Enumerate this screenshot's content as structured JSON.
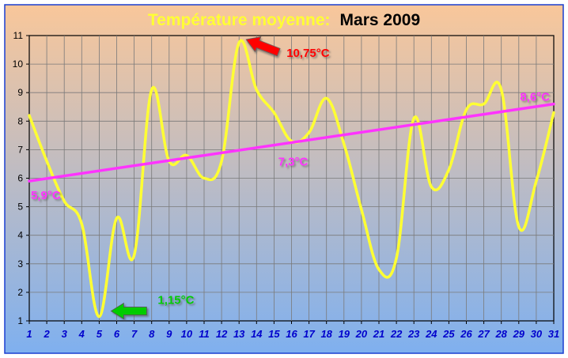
{
  "chart_data": {
    "type": "line",
    "title_part1": "Température moyenne:",
    "title_part2": "Mars 2009",
    "x": [
      1,
      2,
      3,
      4,
      5,
      6,
      7,
      8,
      9,
      10,
      11,
      12,
      13,
      14,
      15,
      16,
      17,
      18,
      19,
      20,
      21,
      22,
      23,
      24,
      25,
      26,
      27,
      28,
      29,
      30,
      31
    ],
    "x_tick_labels": [
      "1",
      "2",
      "3",
      "4",
      "5",
      "6",
      "7",
      "8",
      "9",
      "10",
      "11",
      "12",
      "13",
      "14",
      "15",
      "16",
      "17",
      "18",
      "19",
      "20",
      "21",
      "22",
      "23",
      "24",
      "25",
      "26",
      "27",
      "28",
      "29",
      "30",
      "31"
    ],
    "y_tick_labels": [
      "1",
      "2",
      "3",
      "4",
      "5",
      "6",
      "7",
      "8",
      "9",
      "10",
      "11"
    ],
    "xlim": [
      1,
      31
    ],
    "ylim": [
      1,
      11
    ],
    "grid": true,
    "series": [
      {
        "values": [
          8.2,
          6.6,
          5.2,
          4.4,
          1.15,
          4.6,
          3.3,
          9.1,
          6.6,
          6.8,
          6.0,
          6.6,
          10.75,
          9.1,
          8.3,
          7.3,
          7.6,
          8.8,
          7.2,
          4.9,
          2.8,
          3.2,
          8.1,
          5.7,
          6.3,
          8.4,
          8.6,
          9.1,
          4.3,
          5.9,
          8.3
        ],
        "color": "#ffff33"
      },
      {
        "kind": "trend",
        "start": 5.9,
        "end": 8.6,
        "color": "#ff33ff"
      }
    ],
    "annotations": [
      {
        "text": "10,75°C",
        "x": 13,
        "y": 10.75,
        "color": "#ff0000"
      },
      {
        "text": "1,15°C",
        "x": 5,
        "y": 1.15,
        "color": "#00cc00"
      },
      {
        "text": "5,9°C",
        "x": 1,
        "y": 5.9,
        "color": "#ff33ff"
      },
      {
        "text": "7,3°C",
        "x": 16,
        "y": 7.3,
        "color": "#ff33ff"
      },
      {
        "text": "8,6°C",
        "x": 31,
        "y": 8.6,
        "color": "#ff33ff"
      }
    ],
    "colors": {
      "background_top": "#f9c79a",
      "background_bottom": "#7fb0ef",
      "outer_border": "#1a3fd0",
      "tick_labels": "#0000cc",
      "title_part1": "#ffff33",
      "title_part2": "#000000"
    }
  }
}
